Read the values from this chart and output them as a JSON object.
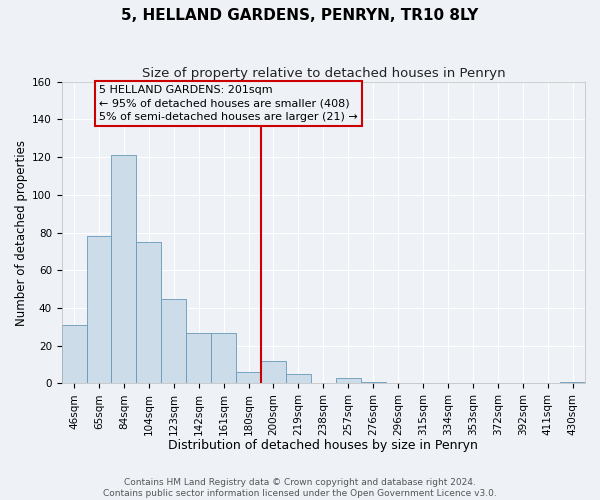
{
  "title": "5, HELLAND GARDENS, PENRYN, TR10 8LY",
  "subtitle": "Size of property relative to detached houses in Penryn",
  "xlabel": "Distribution of detached houses by size in Penryn",
  "ylabel": "Number of detached properties",
  "bin_labels": [
    "46sqm",
    "65sqm",
    "84sqm",
    "104sqm",
    "123sqm",
    "142sqm",
    "161sqm",
    "180sqm",
    "200sqm",
    "219sqm",
    "238sqm",
    "257sqm",
    "276sqm",
    "296sqm",
    "315sqm",
    "334sqm",
    "353sqm",
    "372sqm",
    "392sqm",
    "411sqm",
    "430sqm"
  ],
  "bar_values": [
    31,
    78,
    121,
    75,
    45,
    27,
    27,
    6,
    12,
    5,
    0,
    3,
    1,
    0,
    0,
    0,
    0,
    0,
    0,
    0,
    1
  ],
  "bar_color": "#ccdce8",
  "bar_edge_color": "#6699bb",
  "ylim": [
    0,
    160
  ],
  "yticks": [
    0,
    20,
    40,
    60,
    80,
    100,
    120,
    140,
    160
  ],
  "vline_bin_index": 8,
  "vline_color": "#cc0000",
  "annotation_title": "5 HELLAND GARDENS: 201sqm",
  "annotation_line1": "← 95% of detached houses are smaller (408)",
  "annotation_line2": "5% of semi-detached houses are larger (21) →",
  "annotation_box_color": "#cc0000",
  "footer_line1": "Contains HM Land Registry data © Crown copyright and database right 2024.",
  "footer_line2": "Contains public sector information licensed under the Open Government Licence v3.0.",
  "bg_color": "#eef2f7",
  "grid_color": "#ffffff",
  "title_fontsize": 11,
  "subtitle_fontsize": 9.5,
  "xlabel_fontsize": 9,
  "ylabel_fontsize": 8.5,
  "tick_fontsize": 7.5,
  "footer_fontsize": 6.5,
  "ann_fontsize": 8
}
